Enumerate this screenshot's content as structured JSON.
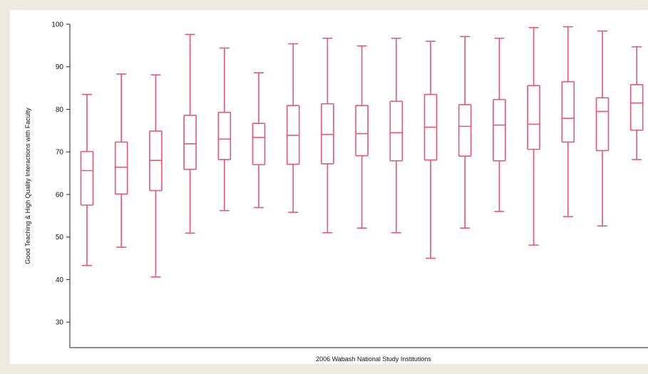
{
  "chart_data": {
    "type": "boxplot",
    "xlabel": "2006 Wabash National Study Institutions",
    "ylabel": "Good Teaching & High Quality Interactions with Faculty",
    "ylim": [
      24,
      100
    ],
    "yticks": [
      30,
      40,
      50,
      60,
      70,
      80,
      90,
      100
    ],
    "grid": false,
    "color": "#e4587a",
    "boxes": [
      {
        "min": 43.3,
        "q1": 57.5,
        "median": 65.6,
        "q3": 70.1,
        "max": 83.5
      },
      {
        "min": 47.6,
        "q1": 60.1,
        "median": 66.4,
        "q3": 72.3,
        "max": 88.3
      },
      {
        "min": 40.6,
        "q1": 60.9,
        "median": 68.0,
        "q3": 74.9,
        "max": 88.1
      },
      {
        "min": 50.9,
        "q1": 65.9,
        "median": 71.9,
        "q3": 78.6,
        "max": 97.6
      },
      {
        "min": 56.2,
        "q1": 68.2,
        "median": 73.0,
        "q3": 79.3,
        "max": 94.4
      },
      {
        "min": 56.9,
        "q1": 67.0,
        "median": 73.4,
        "q3": 76.7,
        "max": 88.6
      },
      {
        "min": 55.8,
        "q1": 67.1,
        "median": 73.9,
        "q3": 80.9,
        "max": 95.4
      },
      {
        "min": 51.0,
        "q1": 67.2,
        "median": 74.1,
        "q3": 81.3,
        "max": 96.7
      },
      {
        "min": 52.1,
        "q1": 69.1,
        "median": 74.3,
        "q3": 80.9,
        "max": 94.9
      },
      {
        "min": 51.0,
        "q1": 67.9,
        "median": 74.5,
        "q3": 81.9,
        "max": 96.7
      },
      {
        "min": 45.0,
        "q1": 68.1,
        "median": 75.8,
        "q3": 83.5,
        "max": 96.0
      },
      {
        "min": 52.1,
        "q1": 69.0,
        "median": 76.0,
        "q3": 81.1,
        "max": 97.1
      },
      {
        "min": 56.0,
        "q1": 67.9,
        "median": 76.3,
        "q3": 82.3,
        "max": 96.7
      },
      {
        "min": 48.1,
        "q1": 70.6,
        "median": 76.5,
        "q3": 85.6,
        "max": 99.2
      },
      {
        "min": 54.8,
        "q1": 72.3,
        "median": 77.9,
        "q3": 86.5,
        "max": 99.4
      },
      {
        "min": 52.6,
        "q1": 70.3,
        "median": 79.5,
        "q3": 82.7,
        "max": 98.4
      },
      {
        "min": 68.2,
        "q1": 75.1,
        "median": 81.5,
        "q3": 85.8,
        "max": 94.7
      }
    ]
  }
}
